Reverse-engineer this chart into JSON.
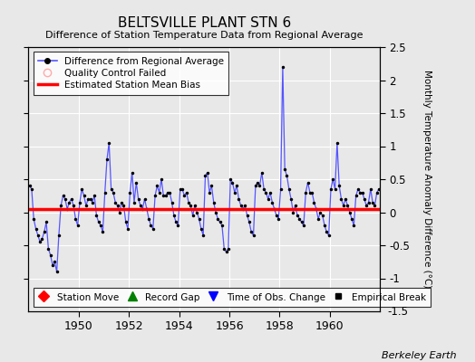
{
  "title": "BELTSVILLE PLANT STN 6",
  "subtitle": "Difference of Station Temperature Data from Regional Average",
  "ylabel": "Monthly Temperature Anomaly Difference (°C)",
  "credit": "Berkeley Earth",
  "ylim": [
    -1.5,
    2.5
  ],
  "yticks": [
    -1.0,
    -0.5,
    0.0,
    0.5,
    1.0,
    1.5,
    2.0,
    2.5
  ],
  "ytick_labels": [
    "-1",
    "-0.5",
    "0",
    "0.5",
    "1",
    "1.5",
    "2",
    "2.5"
  ],
  "xlim": [
    1948.0,
    1962.0
  ],
  "xticks": [
    1950,
    1952,
    1954,
    1956,
    1958,
    1960
  ],
  "bias": 0.05,
  "background_color": "#e8e8e8",
  "plot_bg_color": "#e8e8e8",
  "line_color": "#5555ff",
  "marker_color": "#000000",
  "bias_color": "#ff0000",
  "bias_linewidth": 2.5,
  "legend1_labels": [
    "Difference from Regional Average",
    "Quality Control Failed",
    "Estimated Station Mean Bias"
  ],
  "legend2_labels": [
    "Station Move",
    "Record Gap",
    "Time of Obs. Change",
    "Empirical Break"
  ],
  "data_x": [
    1948.042,
    1948.125,
    1948.208,
    1948.292,
    1948.375,
    1948.458,
    1948.542,
    1948.625,
    1948.708,
    1948.792,
    1948.875,
    1948.958,
    1949.042,
    1949.125,
    1949.208,
    1949.292,
    1949.375,
    1949.458,
    1949.542,
    1949.625,
    1949.708,
    1949.792,
    1949.875,
    1949.958,
    1950.042,
    1950.125,
    1950.208,
    1950.292,
    1950.375,
    1950.458,
    1950.542,
    1950.625,
    1950.708,
    1950.792,
    1950.875,
    1950.958,
    1951.042,
    1951.125,
    1951.208,
    1951.292,
    1951.375,
    1951.458,
    1951.542,
    1951.625,
    1951.708,
    1951.792,
    1951.875,
    1951.958,
    1952.042,
    1952.125,
    1952.208,
    1952.292,
    1952.375,
    1952.458,
    1952.542,
    1952.625,
    1952.708,
    1952.792,
    1952.875,
    1952.958,
    1953.042,
    1953.125,
    1953.208,
    1953.292,
    1953.375,
    1953.458,
    1953.542,
    1953.625,
    1953.708,
    1953.792,
    1953.875,
    1953.958,
    1954.042,
    1954.125,
    1954.208,
    1954.292,
    1954.375,
    1954.458,
    1954.542,
    1954.625,
    1954.708,
    1954.792,
    1954.875,
    1954.958,
    1955.042,
    1955.125,
    1955.208,
    1955.292,
    1955.375,
    1955.458,
    1955.542,
    1955.625,
    1955.708,
    1955.792,
    1955.875,
    1955.958,
    1956.042,
    1956.125,
    1956.208,
    1956.292,
    1956.375,
    1956.458,
    1956.542,
    1956.625,
    1956.708,
    1956.792,
    1956.875,
    1956.958,
    1957.042,
    1957.125,
    1957.208,
    1957.292,
    1957.375,
    1957.458,
    1957.542,
    1957.625,
    1957.708,
    1957.792,
    1957.875,
    1957.958,
    1958.042,
    1958.125,
    1958.208,
    1958.292,
    1958.375,
    1958.458,
    1958.542,
    1958.625,
    1958.708,
    1958.792,
    1958.875,
    1958.958,
    1959.042,
    1959.125,
    1959.208,
    1959.292,
    1959.375,
    1959.458,
    1959.542,
    1959.625,
    1959.708,
    1959.792,
    1959.875,
    1959.958,
    1960.042,
    1960.125,
    1960.208,
    1960.292,
    1960.375,
    1960.458,
    1960.542,
    1960.625,
    1960.708,
    1960.792,
    1960.875,
    1960.958,
    1961.042,
    1961.125,
    1961.208,
    1961.292,
    1961.375,
    1961.458,
    1961.542,
    1961.625,
    1961.708,
    1961.792,
    1961.875,
    1961.958
  ],
  "data_y": [
    0.4,
    0.35,
    -0.1,
    -0.25,
    -0.35,
    -0.45,
    -0.4,
    -0.3,
    -0.15,
    -0.55,
    -0.65,
    -0.8,
    -0.75,
    -0.9,
    -0.35,
    0.1,
    0.25,
    0.2,
    0.05,
    0.15,
    0.2,
    0.1,
    -0.1,
    -0.2,
    0.15,
    0.35,
    0.25,
    0.1,
    0.2,
    0.2,
    0.15,
    0.25,
    -0.05,
    -0.15,
    -0.2,
    -0.3,
    0.3,
    0.8,
    1.05,
    0.35,
    0.3,
    0.15,
    0.1,
    0.0,
    0.15,
    0.1,
    -0.15,
    -0.25,
    0.3,
    0.6,
    0.15,
    0.45,
    0.2,
    0.1,
    0.05,
    0.2,
    0.05,
    -0.1,
    -0.2,
    -0.25,
    0.25,
    0.4,
    0.3,
    0.5,
    0.25,
    0.25,
    0.3,
    0.3,
    0.15,
    -0.05,
    -0.15,
    -0.2,
    0.35,
    0.35,
    0.25,
    0.3,
    0.15,
    0.1,
    -0.05,
    0.1,
    0.0,
    -0.1,
    -0.25,
    -0.35,
    0.55,
    0.6,
    0.3,
    0.4,
    0.15,
    0.0,
    -0.1,
    -0.15,
    -0.2,
    -0.55,
    -0.6,
    -0.55,
    0.5,
    0.45,
    0.3,
    0.4,
    0.2,
    0.1,
    0.05,
    0.1,
    -0.05,
    -0.15,
    -0.3,
    -0.35,
    0.4,
    0.45,
    0.4,
    0.6,
    0.35,
    0.3,
    0.2,
    0.3,
    0.15,
    0.05,
    -0.05,
    -0.1,
    0.35,
    2.2,
    0.65,
    0.55,
    0.35,
    0.2,
    0.0,
    0.1,
    -0.05,
    -0.1,
    -0.15,
    -0.2,
    0.3,
    0.45,
    0.3,
    0.3,
    0.15,
    0.05,
    -0.1,
    0.0,
    -0.05,
    -0.2,
    -0.3,
    -0.35,
    0.35,
    0.5,
    0.35,
    1.05,
    0.4,
    0.2,
    0.1,
    0.2,
    0.1,
    0.0,
    -0.1,
    -0.2,
    0.25,
    0.35,
    0.3,
    0.3,
    0.2,
    0.1,
    0.15,
    0.35,
    0.15,
    0.1,
    0.3,
    0.35
  ]
}
